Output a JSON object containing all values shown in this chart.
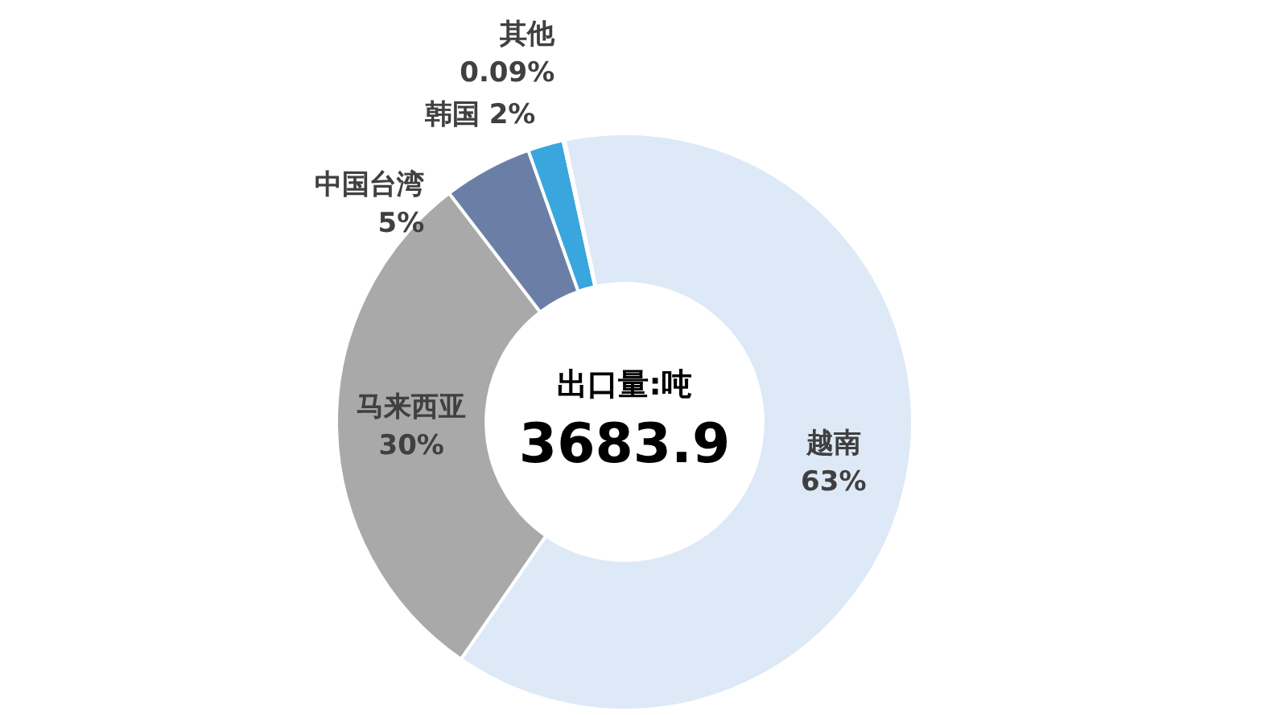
{
  "chart_data": {
    "type": "donut",
    "categories": [
      "越南",
      "马来西亚",
      "中国台湾",
      "韩国",
      "其他"
    ],
    "values": [
      63,
      30,
      5,
      2,
      0.09
    ],
    "value_labels": [
      "63%",
      "30%",
      "5%",
      "2%",
      "0.09%"
    ],
    "colors": [
      "#dde9f6",
      "#a9a9a9",
      "#6b7fa6",
      "#3aa6de",
      "#2f6fb0"
    ],
    "annotations": [
      "出口量:吨",
      "3683.9"
    ],
    "legend": false
  }
}
